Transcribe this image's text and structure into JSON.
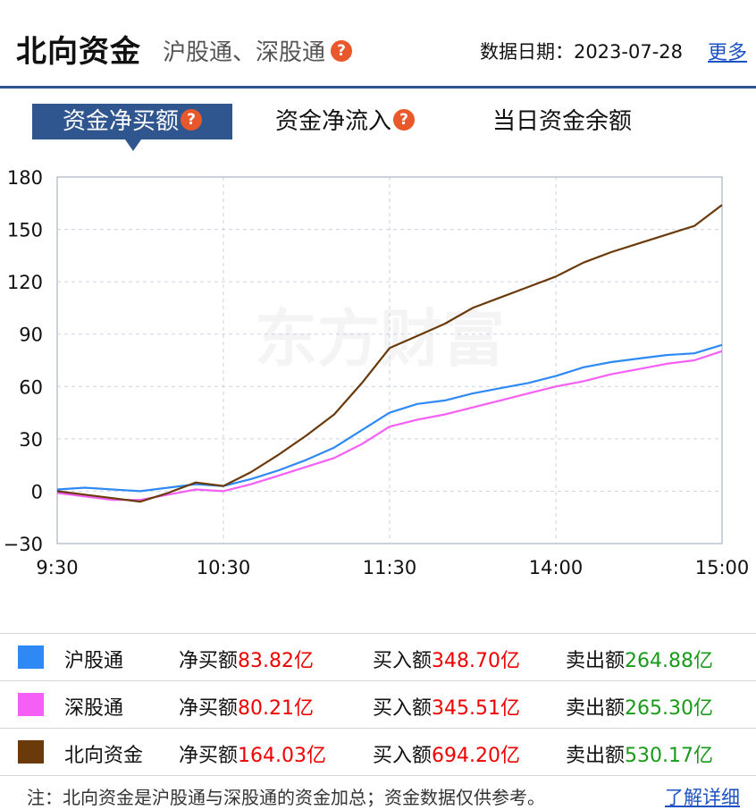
{
  "header": {
    "title": "北向资金",
    "subtitle": "沪股通、深股通",
    "help_glyph": "?",
    "date_label": "数据日期：",
    "date_value": "2023-07-28",
    "more_link": "更多"
  },
  "tabs": [
    {
      "label": "资金净买额",
      "active": true,
      "has_help": true
    },
    {
      "label": "资金净流入",
      "active": false,
      "has_help": true
    },
    {
      "label": "当日资金余额",
      "active": false,
      "has_help": false
    }
  ],
  "watermark": "东方财富",
  "colors": {
    "accent": "#2f568f",
    "hgt": "#2f89f5",
    "sgt": "#f55ff5",
    "total": "#6a3a0a",
    "up": "#ee0000",
    "down": "#1a9a1a",
    "help": "#e8582b"
  },
  "chart_data": {
    "type": "line",
    "x_tick_labels": [
      "9:30",
      "10:30",
      "11:30",
      "14:00",
      "15:00"
    ],
    "x": [
      "9:30",
      "9:40",
      "9:50",
      "10:00",
      "10:10",
      "10:20",
      "10:30",
      "10:40",
      "10:50",
      "11:00",
      "11:10",
      "11:20",
      "11:30",
      "13:10",
      "13:20",
      "13:30",
      "13:40",
      "13:50",
      "14:00",
      "14:10",
      "14:20",
      "14:30",
      "14:40",
      "14:50",
      "15:00"
    ],
    "ylim": [
      -30,
      180
    ],
    "yticks": [
      -30,
      0,
      30,
      60,
      90,
      120,
      150,
      180
    ],
    "grid": true,
    "series": [
      {
        "name": "沪股通",
        "color": "#2f89f5",
        "values": [
          1,
          2,
          1,
          0,
          2,
          4,
          3,
          7,
          12,
          18,
          25,
          35,
          45,
          50,
          52,
          56,
          59,
          62,
          66,
          71,
          74,
          76,
          78,
          79,
          83.82
        ]
      },
      {
        "name": "深股通",
        "color": "#f55ff5",
        "values": [
          -1,
          -3,
          -5,
          -5,
          -2,
          1,
          0,
          4,
          9,
          14,
          19,
          27,
          37,
          41,
          44,
          48,
          52,
          56,
          60,
          63,
          67,
          70,
          73,
          75,
          80.21
        ]
      },
      {
        "name": "北向资金",
        "color": "#6a3a0a",
        "values": [
          0,
          -2,
          -4,
          -6,
          -1,
          5,
          3,
          11,
          21,
          32,
          44,
          62,
          82,
          89,
          96,
          105,
          111,
          117,
          123,
          131,
          137,
          142,
          147,
          152,
          164.03
        ]
      }
    ]
  },
  "legend_table": {
    "net_label": "净买额",
    "buy_label": "买入额",
    "sell_label": "卖出额",
    "rows": [
      {
        "name": "沪股通",
        "color": "#2f89f5",
        "net": "83.82亿",
        "buy": "348.70亿",
        "sell": "264.88亿"
      },
      {
        "name": "深股通",
        "color": "#f55ff5",
        "net": "80.21亿",
        "buy": "345.51亿",
        "sell": "265.30亿"
      },
      {
        "name": "北向资金",
        "color": "#6a3a0a",
        "net": "164.03亿",
        "buy": "694.20亿",
        "sell": "530.17亿"
      }
    ]
  },
  "footer": {
    "note": "注：北向资金是沪股通与深股通的资金加总；资金数据仅供参考。",
    "detail_link": "了解详细"
  }
}
